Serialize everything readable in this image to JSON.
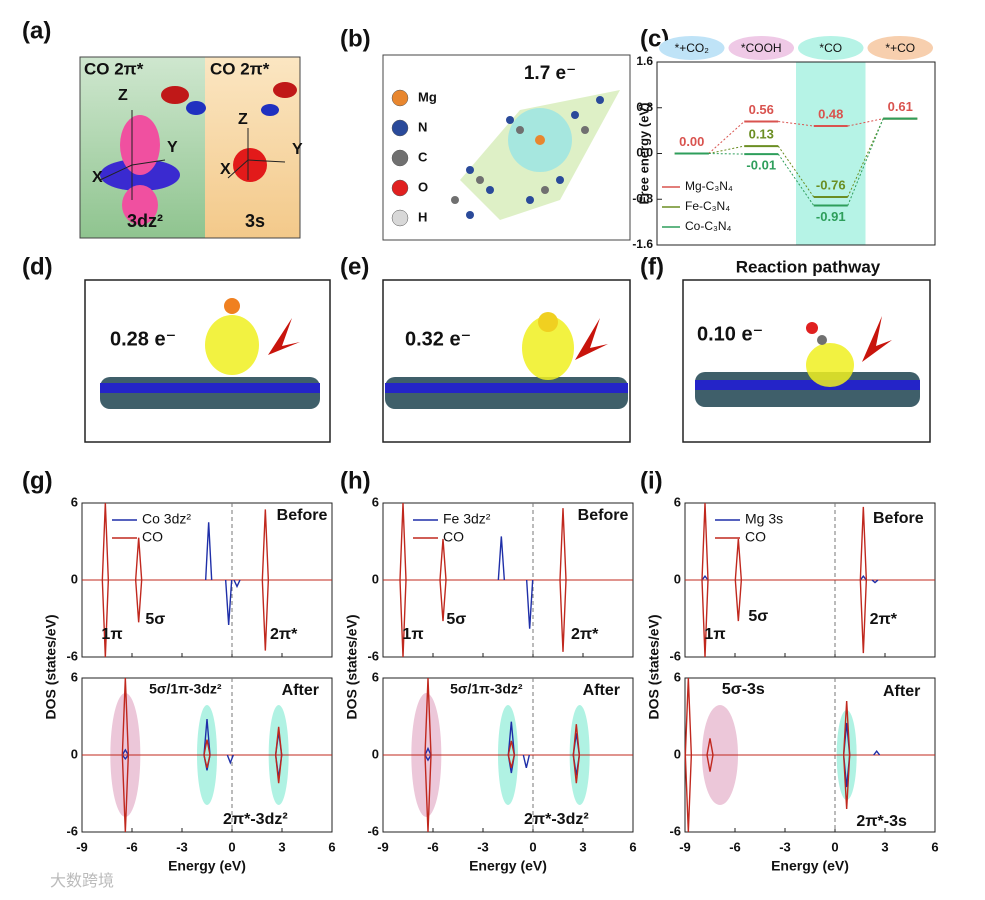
{
  "panel_labels": [
    "(a)",
    "(b)",
    "(c)",
    "(d)",
    "(e)",
    "(f)",
    "(g)",
    "(h)",
    "(i)"
  ],
  "a": {
    "left": {
      "title": "CO 2π*",
      "axes": [
        "Z",
        "Y",
        "X"
      ],
      "orbital": "3dz²"
    },
    "right": {
      "title": "CO 2π*",
      "axes": [
        "Z",
        "Y",
        "X"
      ],
      "orbital": "3s"
    }
  },
  "b": {
    "charge": "1.7 e⁻",
    "legend": [
      {
        "name": "Mg",
        "color": "#e8862e"
      },
      {
        "name": "N",
        "color": "#2a4a9a"
      },
      {
        "name": "C",
        "color": "#707070"
      },
      {
        "name": "O",
        "color": "#e02020"
      },
      {
        "name": "H",
        "color": "#d8d8d8"
      }
    ]
  },
  "d": {
    "charge": "0.28 e⁻"
  },
  "e": {
    "charge": "0.32 e⁻"
  },
  "f": {
    "title": "Reaction pathway",
    "charge": "0.10 e⁻"
  },
  "watermark": "大数跨境",
  "chart_data": [
    {
      "type": "levels",
      "ylabel": "Free energy (eV)",
      "categories": [
        "*+CO₂",
        "*COOH",
        "*CO",
        "*+CO"
      ],
      "category_colors": [
        "#bfe3f7",
        "#efc9e6",
        "#b6f3e6",
        "#f7cfae"
      ],
      "highlight": "*CO",
      "highlight_color": "#b6f3e6",
      "ylim": [
        -1.6,
        1.6
      ],
      "yticks": [
        -1.6,
        -0.8,
        {
          "value": 0,
          "label": "0.0"
        },
        0.8,
        1.6
      ],
      "series": [
        {
          "name": "Mg-C₃N₄",
          "color": "#d9534f",
          "values": [
            0,
            0.56,
            0.48,
            0.61
          ],
          "value_labels": [
            "0.00",
            "0.56",
            "0.48",
            "0.61"
          ]
        },
        {
          "name": "Fe-C₃N₄",
          "color": "#6b8e23",
          "values": [
            0,
            0.13,
            -0.76,
            0.61
          ],
          "value_labels": [
            null,
            "0.13",
            "-0.76",
            null
          ]
        },
        {
          "name": "Co-C₃N₄",
          "color": "#2e9e5b",
          "values": [
            0,
            -0.01,
            -0.91,
            0.61
          ],
          "value_labels": [
            null,
            "-0.01",
            "-0.91",
            null
          ]
        }
      ]
    },
    {
      "type": "spike",
      "xlabel": "Energy (eV)",
      "ylabel": "DOS (states/eV)",
      "xlim": [
        -9,
        6
      ],
      "xticks": [
        -9,
        -6,
        -3,
        0,
        3,
        6
      ],
      "panels": [
        {
          "ylim": [
            -6,
            6
          ],
          "yticks": [
            -6,
            0,
            6
          ],
          "annotations": [
            "Before",
            "1π",
            "5σ",
            "2π*"
          ],
          "series": [
            {
              "name": "Co 3dz²",
              "color": "#1f2fa8",
              "x": [
                -1.4,
                -0.2,
                0.3
              ],
              "values": [
                4.5,
                -3.5,
                -0.5
              ]
            },
            {
              "name": "CO",
              "color": "#c0281e",
              "x": [
                -7.6,
                -7.6,
                -5.6,
                -5.6,
                2.0,
                2.0
              ],
              "values": [
                6,
                -6,
                3.3,
                -3.3,
                5.5,
                -5.5
              ]
            }
          ]
        },
        {
          "ylim": [
            -6,
            6
          ],
          "yticks": [
            -6,
            0,
            6
          ],
          "annotations": [
            "5σ/1π-3dz²",
            "After",
            "2π*-3dz²"
          ],
          "series": [
            {
              "color": "#1f2fa8",
              "x": [
                -6.4,
                -6.4,
                -1.5,
                -1.5,
                2.8,
                2.8,
                -0.1
              ],
              "values": [
                0.4,
                -0.3,
                2.8,
                -1.2,
                1.8,
                -1.8,
                -0.6
              ]
            },
            {
              "color": "#c0281e",
              "x": [
                -6.4,
                -6.4,
                -1.5,
                -1.5,
                2.8,
                2.8
              ],
              "values": [
                6,
                -6,
                1.2,
                -1.0,
                2.2,
                -2.2
              ]
            }
          ]
        }
      ]
    },
    {
      "type": "spike",
      "xlabel": "Energy (eV)",
      "ylabel": "DOS (states/eV)",
      "xlim": [
        -9,
        6
      ],
      "xticks": [
        -9,
        -6,
        -3,
        0,
        3,
        6
      ],
      "panels": [
        {
          "ylim": [
            -6,
            6
          ],
          "yticks": [
            -6,
            0,
            6
          ],
          "annotations": [
            "Before",
            "1π",
            "5σ",
            "2π*"
          ],
          "series": [
            {
              "name": "Fe 3dz²",
              "color": "#1f2fa8",
              "x": [
                -1.9,
                -0.2
              ],
              "values": [
                3.4,
                -3.8
              ]
            },
            {
              "name": "CO",
              "color": "#c0281e",
              "x": [
                -7.8,
                -7.8,
                -5.4,
                -5.4,
                1.8,
                1.8
              ],
              "values": [
                6,
                -6,
                3.2,
                -3.2,
                5.6,
                -5.6
              ]
            }
          ]
        },
        {
          "ylim": [
            -6,
            6
          ],
          "yticks": [
            -6,
            0,
            6
          ],
          "annotations": [
            "5σ/1π-3dz²",
            "After",
            "2π*-3dz²"
          ],
          "series": [
            {
              "color": "#1f2fa8",
              "x": [
                -6.3,
                -6.3,
                -1.3,
                -1.3,
                2.6,
                2.6,
                -0.4
              ],
              "values": [
                0.5,
                -0.4,
                2.6,
                -1.4,
                1.7,
                -1.6,
                -1.0
              ]
            },
            {
              "color": "#c0281e",
              "x": [
                -6.3,
                -6.3,
                -1.3,
                -1.3,
                2.6,
                2.6
              ],
              "values": [
                6,
                -6,
                1.1,
                -1.0,
                2.4,
                -2.2
              ]
            }
          ]
        }
      ]
    },
    {
      "type": "spike",
      "xlabel": "Energy (eV)",
      "ylabel": "DOS (states/eV)",
      "xlim": [
        -9,
        6
      ],
      "xticks": [
        -9,
        -6,
        -3,
        0,
        3,
        6
      ],
      "panels": [
        {
          "ylim": [
            -6,
            6
          ],
          "yticks": [
            -6,
            0,
            6
          ],
          "annotations": [
            "Before",
            "1π",
            "5σ",
            "2π*"
          ],
          "series": [
            {
              "name": "Mg 3s",
              "color": "#1f2fa8",
              "x": [
                -7.8,
                1.7,
                2.4
              ],
              "values": [
                0.3,
                0.3,
                -0.2
              ]
            },
            {
              "name": "CO",
              "color": "#c0281e",
              "x": [
                -7.8,
                -7.8,
                -5.8,
                -5.8,
                1.7,
                1.7
              ],
              "values": [
                6,
                -6,
                3.2,
                -3.2,
                5.7,
                -5.7
              ]
            }
          ]
        },
        {
          "ylim": [
            -6,
            6
          ],
          "yticks": [
            -6,
            0,
            6
          ],
          "annotations": [
            "5σ-3s",
            "After",
            "2π*-3s"
          ],
          "series": [
            {
              "color": "#1f2fa8",
              "x": [
                0.7,
                0.7,
                2.5
              ],
              "values": [
                2.5,
                -2.5,
                0.3
              ]
            },
            {
              "color": "#c0281e",
              "x": [
                -8.8,
                -8.8,
                -7.5,
                -7.5,
                0.7,
                0.7
              ],
              "values": [
                6,
                -6,
                1.3,
                -1.3,
                4.2,
                -4.2
              ]
            }
          ]
        }
      ]
    }
  ]
}
